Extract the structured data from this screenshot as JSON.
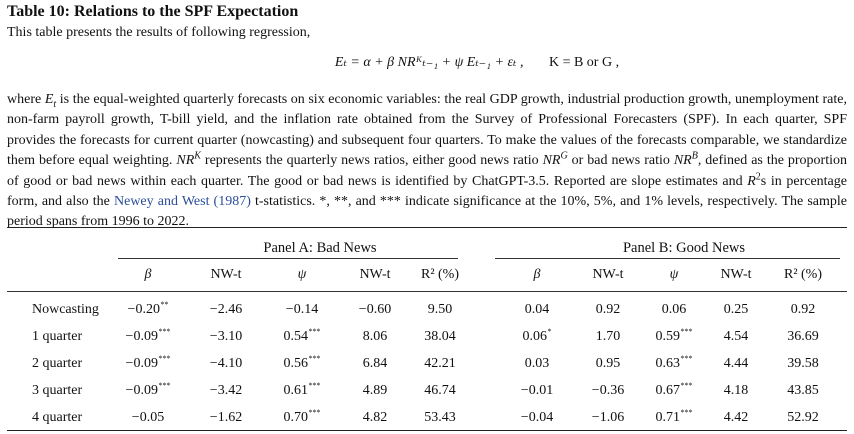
{
  "table": {
    "title": "Table 10: Relations to the SPF Expectation",
    "intro": "This table presents the results of following regression,",
    "equation_lhs": "Eₜ = α + β NRᴷₜ₋₁ + ψ Eₜ₋₁ + εₜ ,",
    "equation_cond": "K = B or G ,",
    "description_parts": {
      "p1": "where ",
      "p2": " is the equal-weighted quarterly forecasts on six economic variables: the real GDP growth, industrial production growth, unemployment rate, non-farm payroll growth, T-bill yield, and the inflation rate obtained from the Survey of Professional Forecasters (SPF). In each quarter, SPF provides the forecasts for current quarter (nowcasting) and subsequent four quarters. To make the values of the forecasts comparable, we standardize them before equal weighting. ",
      "p3": " represents the quarterly news ratios, either good news ratio ",
      "p4": " or bad news ratio ",
      "p5": ", defined as the proportion of good or bad news within each quarter. The good or bad news is identified by ChatGPT-3.5. Reported are slope estimates and ",
      "p6": "s in percentage form, and also the ",
      "link": "Newey and West (1987)",
      "p7": " t-statistics. *, **, and *** indicate significance at the 10%, 5%, and 1% levels, respectively. The sample period spans from 1996 to 2022."
    },
    "panels": [
      "Panel A: Bad News",
      "Panel B: Good News"
    ],
    "columns": [
      "β",
      "NW-t",
      "ψ",
      "NW-t",
      "R² (%)",
      "β",
      "NW-t",
      "ψ",
      "NW-t",
      "R² (%)"
    ],
    "rows": [
      {
        "label": "Nowcasting",
        "cells": [
          [
            "−0.20",
            "**"
          ],
          [
            "−2.46",
            ""
          ],
          [
            "−0.14",
            ""
          ],
          [
            "−0.60",
            ""
          ],
          [
            "9.50",
            ""
          ],
          [
            "0.04",
            ""
          ],
          [
            "0.92",
            ""
          ],
          [
            "0.06",
            ""
          ],
          [
            "0.25",
            ""
          ],
          [
            "0.92",
            ""
          ]
        ]
      },
      {
        "label": "1 quarter",
        "cells": [
          [
            "−0.09",
            "***"
          ],
          [
            "−3.10",
            ""
          ],
          [
            "0.54",
            "***"
          ],
          [
            "8.06",
            ""
          ],
          [
            "38.04",
            ""
          ],
          [
            "0.06",
            "*"
          ],
          [
            "1.70",
            ""
          ],
          [
            "0.59",
            "***"
          ],
          [
            "4.54",
            ""
          ],
          [
            "36.69",
            ""
          ]
        ]
      },
      {
        "label": "2 quarter",
        "cells": [
          [
            "−0.09",
            "***"
          ],
          [
            "−4.10",
            ""
          ],
          [
            "0.56",
            "***"
          ],
          [
            "6.84",
            ""
          ],
          [
            "42.21",
            ""
          ],
          [
            "0.03",
            ""
          ],
          [
            "0.95",
            ""
          ],
          [
            "0.63",
            "***"
          ],
          [
            "4.44",
            ""
          ],
          [
            "39.58",
            ""
          ]
        ]
      },
      {
        "label": "3 quarter",
        "cells": [
          [
            "−0.09",
            "***"
          ],
          [
            "−3.42",
            ""
          ],
          [
            "0.61",
            "***"
          ],
          [
            "4.89",
            ""
          ],
          [
            "46.74",
            ""
          ],
          [
            "−0.01",
            ""
          ],
          [
            "−0.36",
            ""
          ],
          [
            "0.67",
            "***"
          ],
          [
            "4.18",
            ""
          ],
          [
            "43.85",
            ""
          ]
        ]
      },
      {
        "label": "4 quarter",
        "cells": [
          [
            "−0.05",
            ""
          ],
          [
            "−1.62",
            ""
          ],
          [
            "0.70",
            "***"
          ],
          [
            "4.82",
            ""
          ],
          [
            "53.43",
            ""
          ],
          [
            "−0.04",
            ""
          ],
          [
            "−1.06",
            ""
          ],
          [
            "0.71",
            "***"
          ],
          [
            "4.42",
            ""
          ],
          [
            "52.92",
            ""
          ]
        ]
      }
    ]
  }
}
